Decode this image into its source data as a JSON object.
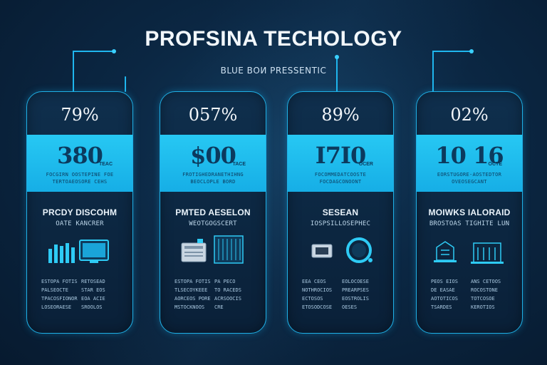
{
  "header": {
    "title": "PROFSINA TECHOLOGY",
    "subtitle": "BLUE ВОИ PRESSENTIC"
  },
  "cards": [
    {
      "percent": "79%",
      "value": "380",
      "unit": "TEAC",
      "caption1": "FOCGIRN OOSTEPINE FOE",
      "caption2": "TERTOAEOSORE CEHS",
      "heading": "PRCDY DISCOHM",
      "subheading": "OATE KANCRER",
      "rows": [
        "ESTOPA FOTIS",
        "RETOSEAD",
        "PALSEOCTE",
        "STAR EOS",
        "TPACOSFIONOR",
        "EOA ACIE",
        "LOSEORAESE",
        "SROOLOS"
      ]
    },
    {
      "percent": "057%",
      "value": "$00",
      "unit": "TACE",
      "caption1": "FROTIGHEDRANETHIHNG",
      "caption2": "BEOCLOPLE BORD",
      "heading": "PMTED AESELON",
      "subheading": "WEOTGOGSCERT",
      "rows": [
        "ESTOPA FOTIS",
        "PA PECO",
        "TLSECOYKEEE",
        "TO RACEDS",
        "AORCEOS PORE",
        "ACRSOOCIS",
        "MSTOCKNOOS",
        "CRE"
      ]
    },
    {
      "percent": "89%",
      "value": "I7I0",
      "unit": "OCER",
      "caption1": "FOCOMMEDATCOOSTE",
      "caption2": "FOCDAGCONOONT",
      "heading": "SESEAN",
      "subheading": "IOSPSILLOSEPHEC",
      "rows": [
        "EEA CEOS",
        "EOLOCOESE",
        "NOTHROCIOS",
        "PREARPSES",
        "ECTOSOS",
        "EOSTROLIS",
        "ETOSODCOSE",
        "OESES"
      ]
    },
    {
      "percent": "02%",
      "value": "10 16",
      "unit": "OCTE",
      "caption1": "EORSTUGORE-AOSTEDTOR",
      "caption2": "OVEOSEGCANT",
      "heading": "MOIWKS IALORAID",
      "subheading": "BROSTOAS TIGHITE LUN",
      "rows": [
        "PEOS EIOS",
        "ANS CETOOS",
        "DE EASAE",
        "ROCOSTONE",
        "AOTOTICOS",
        "TOTCOSOE",
        "TSARDES",
        "KEROTIOS"
      ]
    }
  ],
  "colors": {
    "accent": "#1fb0e6",
    "band": "#27c8f3",
    "background": "#0b2743"
  },
  "icons": [
    "server-rack-monitor-icon",
    "printer-server-icon",
    "device-ring-icon",
    "cloud-datacenter-icon"
  ]
}
